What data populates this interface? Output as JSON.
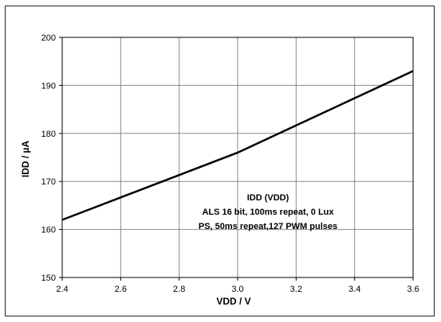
{
  "chart_data": {
    "type": "line",
    "title": "",
    "xlabel": "VDD / V",
    "ylabel": "IDD / µA",
    "xlim": [
      2.4,
      3.6
    ],
    "ylim": [
      150,
      200
    ],
    "x_ticks": [
      "2.4",
      "2.6",
      "2.8",
      "3.0",
      "3.2",
      "3.4",
      "3.6"
    ],
    "y_ticks": [
      "150",
      "160",
      "170",
      "180",
      "190",
      "200"
    ],
    "grid": true,
    "series": [
      {
        "x": [
          2.4,
          3.0,
          3.6
        ],
        "y": [
          162,
          176,
          193
        ],
        "color": "#000000"
      }
    ],
    "annotation": [
      "IDD (VDD)",
      "ALS 16 bit, 100ms repeat, 0 Lux",
      "PS, 50ms repeat,127 PWM pulses"
    ]
  }
}
